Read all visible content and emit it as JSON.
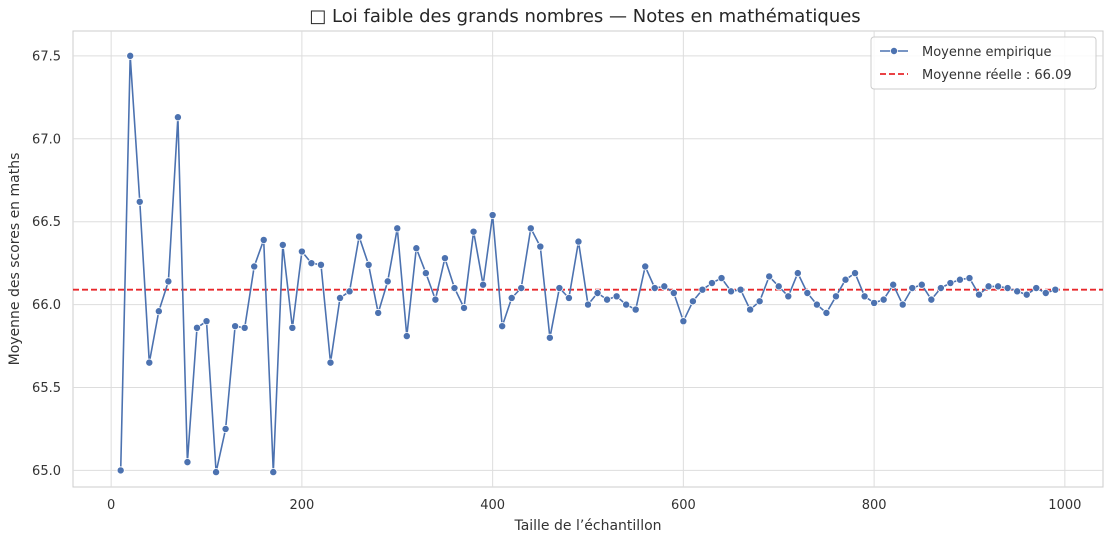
{
  "chart_data": {
    "type": "line",
    "title": "□ Loi faible des grands nombres — Notes en mathématiques",
    "xlabel": "Taille de l’échantillon",
    "ylabel": "Moyenne des scores en maths",
    "xlim": [
      -40,
      1040
    ],
    "ylim": [
      64.9,
      67.65
    ],
    "xticks": [
      0,
      200,
      400,
      600,
      800,
      1000
    ],
    "yticks": [
      65.0,
      65.5,
      66.0,
      66.5,
      67.0,
      67.5
    ],
    "ytick_labels": [
      "65.0",
      "65.5",
      "66.0",
      "66.5",
      "67.0",
      "67.5"
    ],
    "grid": true,
    "legend_position": "top-right",
    "series": [
      {
        "name": "Moyenne empirique",
        "color": "#4c72b0",
        "marker": "circle",
        "x": [
          10,
          20,
          30,
          40,
          50,
          60,
          70,
          80,
          90,
          100,
          110,
          120,
          130,
          140,
          150,
          160,
          170,
          180,
          190,
          200,
          210,
          220,
          230,
          240,
          250,
          260,
          270,
          280,
          290,
          300,
          310,
          320,
          330,
          340,
          350,
          360,
          370,
          380,
          390,
          400,
          410,
          420,
          430,
          440,
          450,
          460,
          470,
          480,
          490,
          500,
          510,
          520,
          530,
          540,
          550,
          560,
          570,
          580,
          590,
          600,
          610,
          620,
          630,
          640,
          650,
          660,
          670,
          680,
          690,
          700,
          710,
          720,
          730,
          740,
          750,
          760,
          770,
          780,
          790,
          800,
          810,
          820,
          830,
          840,
          850,
          860,
          870,
          880,
          890,
          900,
          910,
          920,
          930,
          940,
          950,
          960,
          970,
          980,
          990
        ],
        "y": [
          65.0,
          67.5,
          66.62,
          65.65,
          65.96,
          66.14,
          67.13,
          65.05,
          65.86,
          65.9,
          64.99,
          65.25,
          65.87,
          65.86,
          66.23,
          66.39,
          64.99,
          66.36,
          65.86,
          66.32,
          66.25,
          66.24,
          65.65,
          66.04,
          66.08,
          66.41,
          66.24,
          65.95,
          66.14,
          66.46,
          65.81,
          66.34,
          66.19,
          66.03,
          66.28,
          66.1,
          65.98,
          66.44,
          66.12,
          66.54,
          65.87,
          66.04,
          66.1,
          66.46,
          66.35,
          65.8,
          66.1,
          66.04,
          66.38,
          66.0,
          66.07,
          66.03,
          66.05,
          66.0,
          65.97,
          66.23,
          66.1,
          66.11,
          66.07,
          65.9,
          66.02,
          66.09,
          66.13,
          66.16,
          66.08,
          66.09,
          65.97,
          66.02,
          66.17,
          66.11,
          66.05,
          66.19,
          66.07,
          66.0,
          65.95,
          66.05,
          66.15,
          66.19,
          66.05,
          66.01,
          66.03,
          66.12,
          66.0,
          66.1,
          66.12,
          66.03,
          66.1,
          66.13,
          66.15,
          66.16,
          66.06,
          66.11,
          66.11,
          66.1,
          66.08,
          66.06,
          66.1,
          66.07,
          66.09
        ]
      },
      {
        "name": "Moyenne réelle : 66.09",
        "color": "#e8282b",
        "style": "dashed",
        "y": 66.09
      }
    ]
  }
}
